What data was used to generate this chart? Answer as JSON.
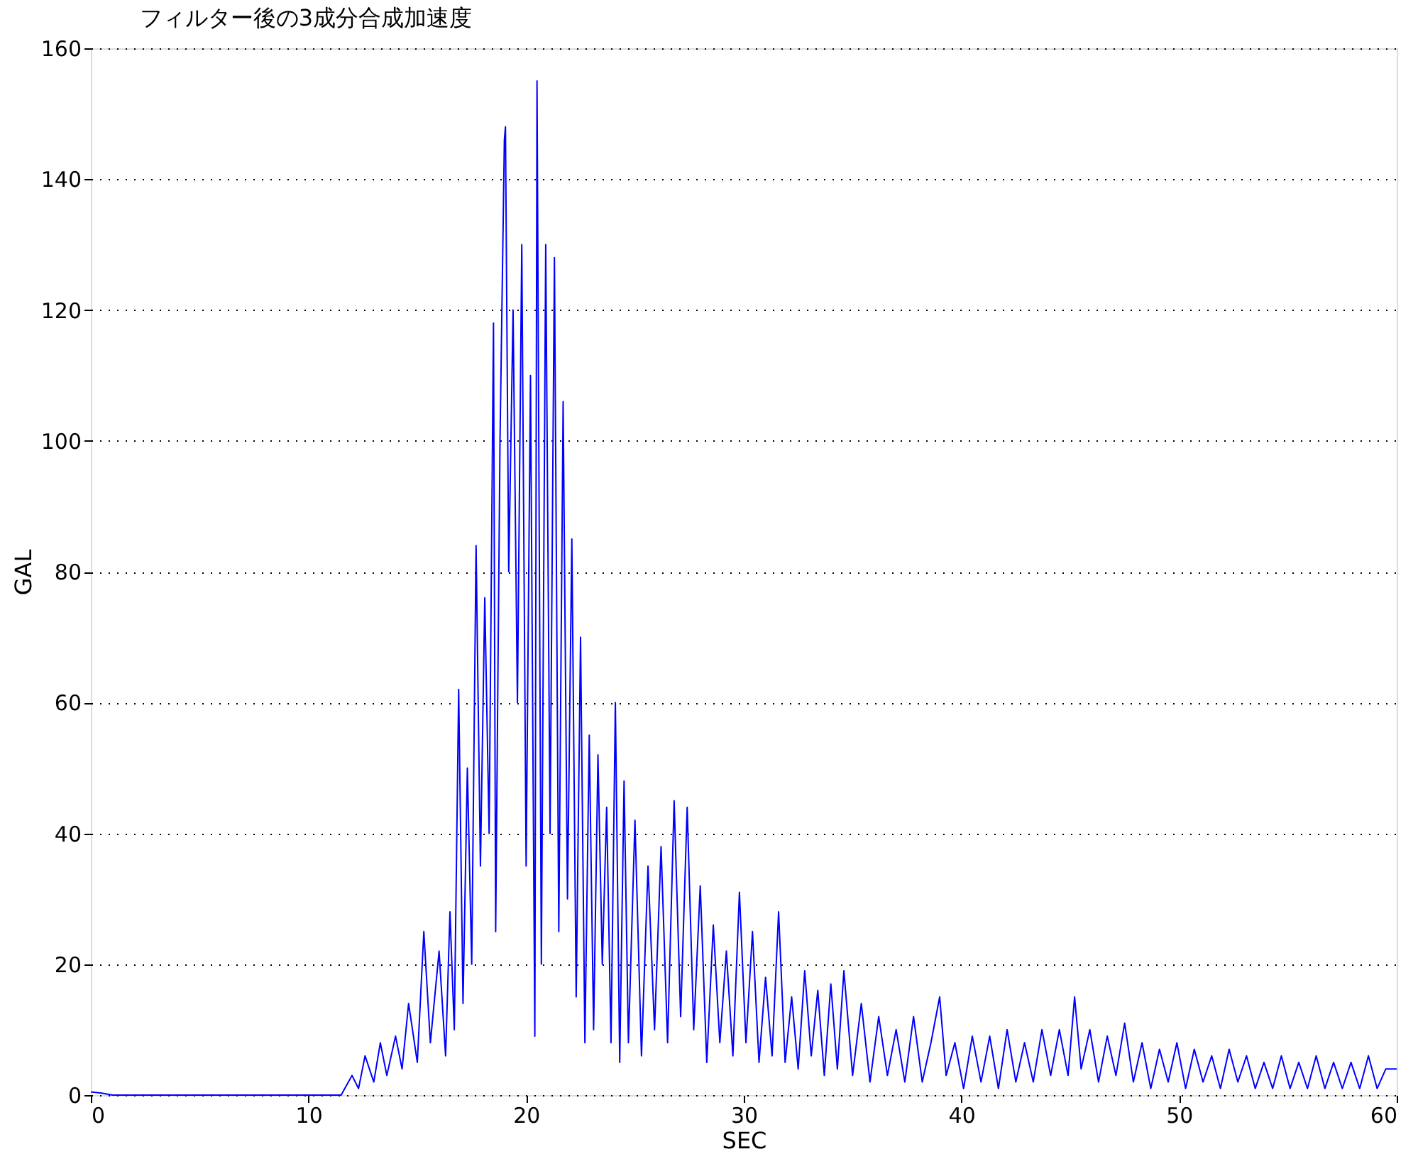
{
  "chart_data": {
    "type": "line",
    "title": "フィルター後の3成分合成加速度",
    "xlabel": "SEC",
    "ylabel": "GAL",
    "xlim": [
      0,
      60
    ],
    "xticks": [
      0,
      10,
      20,
      30,
      40,
      50,
      60
    ],
    "ylim": [
      0,
      160
    ],
    "yticks": [
      0,
      20,
      40,
      60,
      80,
      100,
      120,
      140,
      160
    ],
    "grid": "y",
    "marker": "none",
    "line_style": "solid",
    "series": [
      {
        "color": "#0000ff",
        "x": [
          0,
          0.5,
          1,
          11.5,
          12,
          12.3,
          12.6,
          13,
          13.3,
          13.6,
          14,
          14.3,
          14.6,
          15,
          15.3,
          15.6,
          16,
          16.3,
          16.5,
          16.7,
          16.9,
          17.1,
          17.3,
          17.5,
          17.7,
          17.9,
          18.1,
          18.3,
          18.5,
          18.6,
          18.8,
          19.0,
          19.05,
          19.2,
          19.4,
          19.6,
          19.8,
          20.0,
          20.2,
          20.4,
          20.5,
          20.7,
          20.9,
          21.1,
          21.3,
          21.5,
          21.7,
          21.9,
          22.1,
          22.3,
          22.5,
          22.7,
          22.9,
          23.1,
          23.3,
          23.5,
          23.7,
          23.9,
          24.1,
          24.3,
          24.5,
          24.7,
          25.0,
          25.3,
          25.6,
          25.9,
          26.2,
          26.5,
          26.8,
          27.1,
          27.4,
          27.7,
          28.0,
          28.3,
          28.6,
          28.9,
          29.2,
          29.5,
          29.8,
          30.1,
          30.4,
          30.7,
          31.0,
          31.3,
          31.6,
          31.9,
          32.2,
          32.5,
          32.8,
          33.1,
          33.4,
          33.7,
          34.0,
          34.3,
          34.6,
          35,
          35.4,
          35.8,
          36.2,
          36.6,
          37,
          37.4,
          37.8,
          38.2,
          38.6,
          39,
          39.3,
          39.7,
          40.1,
          40.5,
          40.9,
          41.3,
          41.7,
          42.1,
          42.5,
          42.9,
          43.3,
          43.7,
          44.1,
          44.5,
          44.9,
          45.2,
          45.5,
          45.9,
          46.3,
          46.7,
          47.1,
          47.5,
          47.9,
          48.3,
          48.7,
          49.1,
          49.5,
          49.9,
          50.3,
          50.7,
          51.1,
          51.5,
          51.9,
          52.3,
          52.7,
          53.1,
          53.5,
          53.9,
          54.3,
          54.7,
          55.1,
          55.5,
          55.9,
          56.3,
          56.7,
          57.1,
          57.5,
          57.9,
          58.3,
          58.7,
          59.1,
          59.5,
          60
        ],
        "values": [
          0.5,
          0.3,
          0,
          0,
          3,
          1,
          6,
          2,
          8,
          3,
          9,
          4,
          14,
          5,
          25,
          8,
          22,
          6,
          28,
          10,
          62,
          14,
          50,
          20,
          84,
          35,
          76,
          40,
          118,
          25,
          100,
          146,
          148,
          80,
          120,
          60,
          130,
          35,
          110,
          9,
          155,
          20,
          130,
          40,
          128,
          25,
          106,
          30,
          85,
          15,
          70,
          8,
          55,
          10,
          52,
          20,
          44,
          8,
          60,
          5,
          48,
          8,
          42,
          6,
          35,
          10,
          38,
          8,
          45,
          12,
          44,
          10,
          32,
          5,
          26,
          8,
          22,
          6,
          31,
          8,
          25,
          5,
          18,
          6,
          28,
          5,
          15,
          4,
          19,
          6,
          16,
          3,
          17,
          4,
          19,
          3,
          14,
          2,
          12,
          3,
          10,
          2,
          12,
          2,
          8,
          15,
          3,
          8,
          1,
          9,
          2,
          9,
          1,
          10,
          2,
          8,
          2,
          10,
          3,
          10,
          3,
          15,
          4,
          10,
          2,
          9,
          3,
          11,
          2,
          8,
          1,
          7,
          2,
          8,
          1,
          7,
          2,
          6,
          1,
          7,
          2,
          6,
          1,
          5,
          1,
          6,
          1,
          5,
          1,
          6,
          1,
          5,
          1,
          5,
          1,
          6,
          1,
          4,
          4
        ]
      }
    ]
  }
}
